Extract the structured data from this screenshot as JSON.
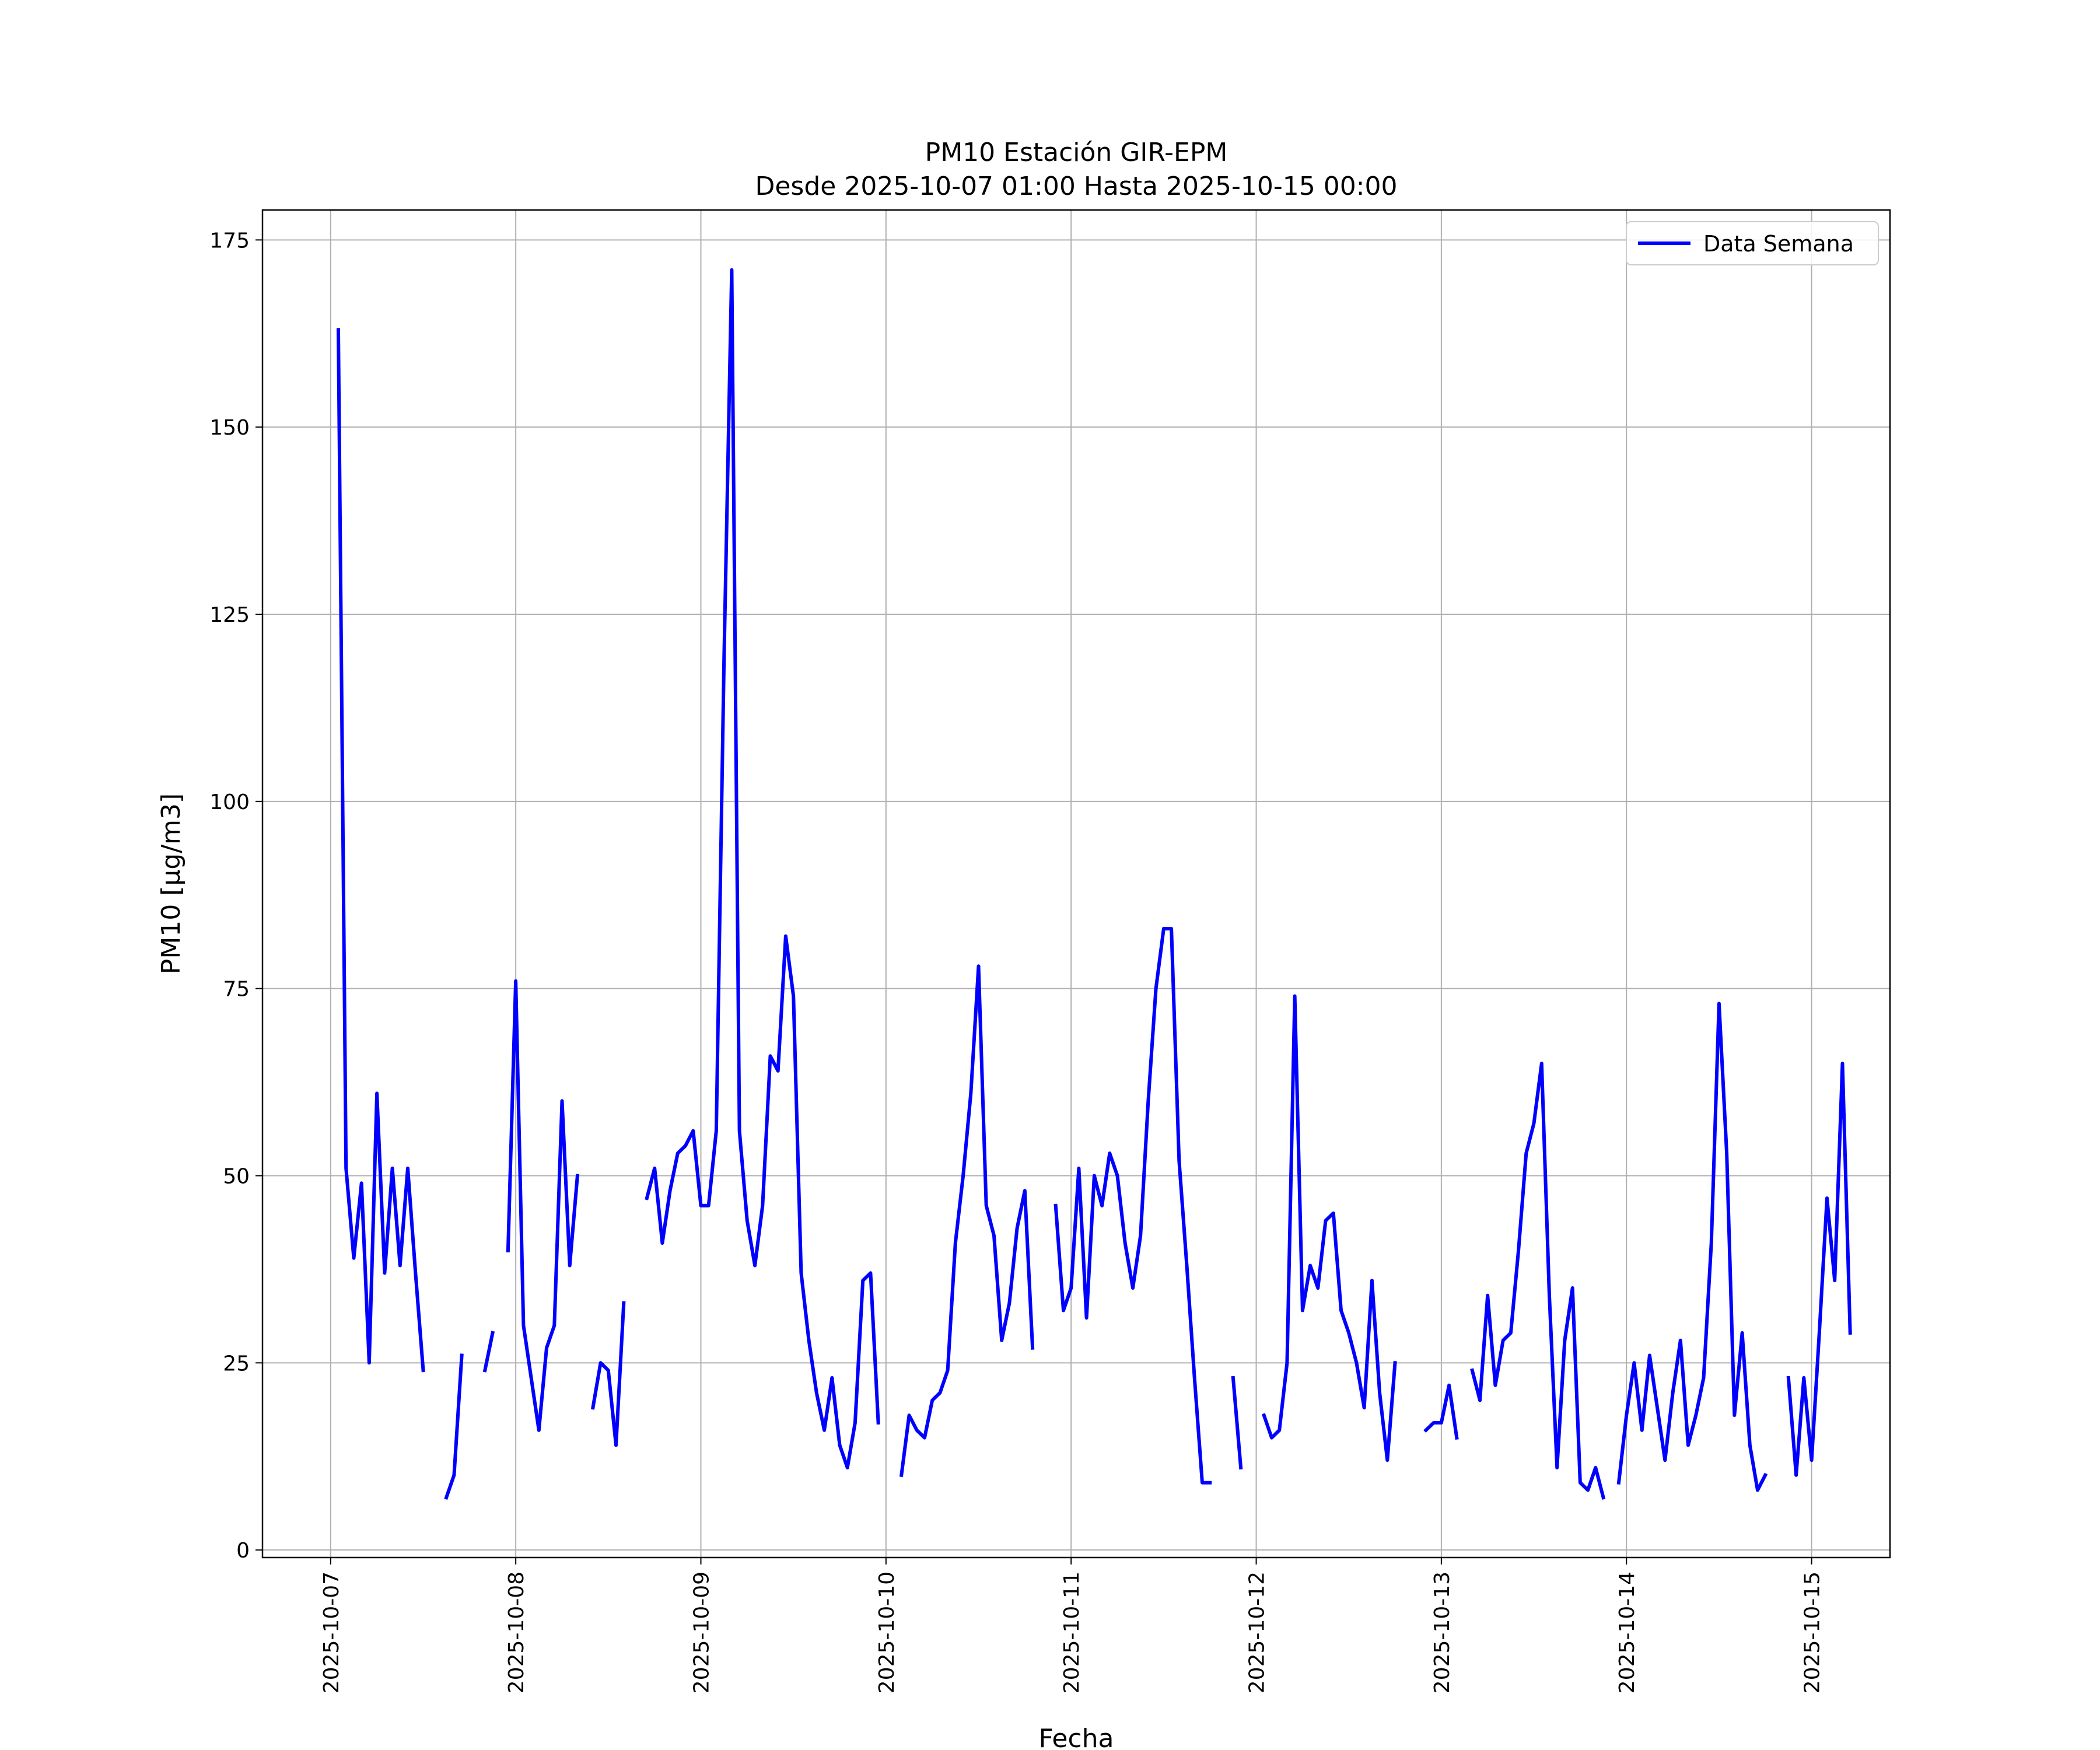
{
  "chart_data": {
    "type": "line",
    "title": "PM10 Estación GIR-EPM",
    "subtitle": "Desde 2025-10-07 01:00 Hasta 2025-10-15 00:00",
    "xlabel": "Fecha",
    "ylabel": "PM10 [μg/m3]",
    "xlim": [
      "2025-10-06 15:10",
      "2025-10-15 10:10"
    ],
    "ylim": [
      -1,
      179
    ],
    "x_ticks": [
      "2025-10-07",
      "2025-10-08",
      "2025-10-09",
      "2025-10-10",
      "2025-10-11",
      "2025-10-12",
      "2025-10-13",
      "2025-10-14",
      "2025-10-15"
    ],
    "y_ticks": [
      0,
      25,
      50,
      75,
      100,
      125,
      150,
      175
    ],
    "y_tick_labels": [
      "0",
      "25",
      "50",
      "75",
      "100",
      "125",
      "150",
      "175"
    ],
    "grid": true,
    "legend_position": "top-right",
    "series": [
      {
        "name": "Data Semana",
        "color": "#0000ff",
        "x_start": "2025-10-07 01:00",
        "x_step": "1 hour",
        "values": [
          163,
          51,
          39,
          49,
          25,
          61,
          37,
          51,
          38,
          51,
          37,
          24,
          null,
          null,
          7,
          10,
          26,
          null,
          null,
          24,
          29,
          null,
          40,
          76,
          30,
          23,
          16,
          27,
          30,
          60,
          38,
          50,
          null,
          19,
          25,
          24,
          14,
          33,
          null,
          null,
          47,
          51,
          41,
          48,
          53,
          54,
          56,
          46,
          46,
          56,
          119,
          171,
          56,
          44,
          38,
          46,
          66,
          64,
          82,
          74,
          37,
          28,
          21,
          16,
          23,
          14,
          11,
          17,
          36,
          37,
          17,
          null,
          null,
          10,
          18,
          16,
          15,
          20,
          21,
          24,
          41,
          50,
          61,
          78,
          46,
          42,
          28,
          33,
          43,
          48,
          27,
          null,
          null,
          46,
          32,
          35,
          51,
          31,
          50,
          46,
          53,
          50,
          41,
          35,
          42,
          60,
          75,
          83,
          83,
          52,
          38,
          23,
          9,
          9,
          null,
          null,
          23,
          11,
          null,
          null,
          18,
          15,
          16,
          25,
          74,
          32,
          38,
          35,
          44,
          45,
          32,
          29,
          25,
          19,
          36,
          21,
          12,
          25,
          null,
          null,
          null,
          16,
          17,
          17,
          22,
          15,
          null,
          24,
          20,
          34,
          22,
          28,
          29,
          40,
          53,
          57,
          65,
          34,
          11,
          28,
          35,
          9,
          8,
          11,
          7,
          null,
          9,
          18,
          25,
          16,
          26,
          19,
          12,
          21,
          28,
          14,
          18,
          23,
          41,
          73,
          53,
          18,
          29,
          14,
          8,
          10,
          null,
          null,
          23,
          10,
          23,
          12,
          29,
          47,
          36,
          65,
          29
        ]
      }
    ]
  }
}
